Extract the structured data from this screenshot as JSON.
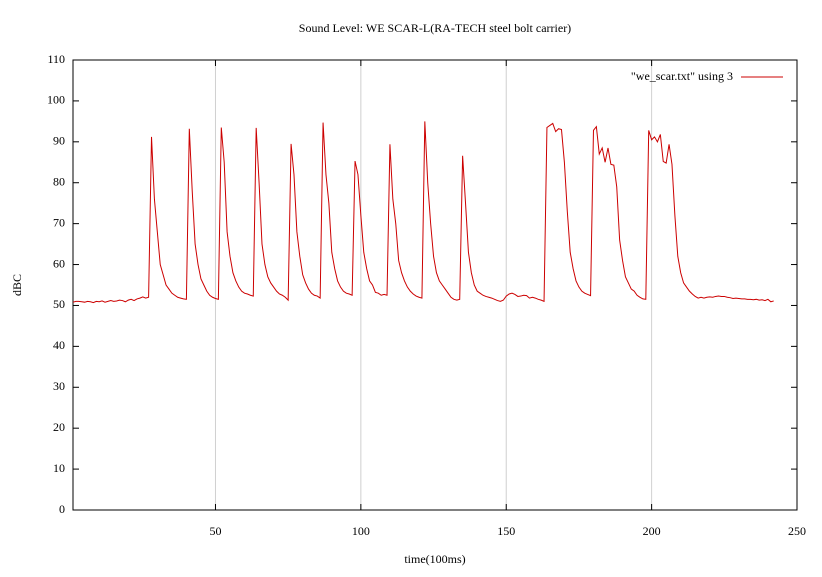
{
  "chart_data": {
    "type": "line",
    "title": "Sound Level: WE SCAR-L(RA-TECH steel bolt carrier)",
    "xlabel": "time(100ms)",
    "ylabel": "dBC",
    "x": [
      1,
      2,
      3,
      4,
      5,
      6,
      7,
      8,
      9,
      10,
      11,
      12,
      13,
      14,
      15,
      16,
      17,
      18,
      19,
      20,
      21,
      22,
      23,
      24,
      25,
      26,
      27,
      28,
      29,
      30,
      31,
      32,
      33,
      34,
      35,
      36,
      37,
      38,
      39,
      40,
      41,
      42,
      43,
      44,
      45,
      46,
      47,
      48,
      49,
      50,
      51,
      52,
      53,
      54,
      55,
      56,
      57,
      58,
      59,
      60,
      61,
      62,
      63,
      64,
      65,
      66,
      67,
      68,
      69,
      70,
      71,
      72,
      73,
      74,
      75,
      76,
      77,
      78,
      79,
      80,
      81,
      82,
      83,
      84,
      85,
      86,
      87,
      88,
      89,
      90,
      91,
      92,
      93,
      94,
      95,
      96,
      97,
      98,
      99,
      100,
      101,
      102,
      103,
      104,
      105,
      106,
      107,
      108,
      109,
      110,
      111,
      112,
      113,
      114,
      115,
      116,
      117,
      118,
      119,
      120,
      121,
      122,
      123,
      124,
      125,
      126,
      127,
      128,
      129,
      130,
      131,
      132,
      133,
      134,
      135,
      136,
      137,
      138,
      139,
      140,
      141,
      142,
      143,
      144,
      145,
      146,
      147,
      148,
      149,
      150,
      151,
      152,
      153,
      154,
      155,
      156,
      157,
      158,
      159,
      160,
      161,
      162,
      163,
      164,
      165,
      166,
      167,
      168,
      169,
      170,
      171,
      172,
      173,
      174,
      175,
      176,
      177,
      178,
      179,
      180,
      181,
      182,
      183,
      184,
      185,
      186,
      187,
      188,
      189,
      190,
      191,
      192,
      193,
      194,
      195,
      196,
      197,
      198,
      199,
      200,
      201,
      202,
      203,
      204,
      205,
      206,
      207,
      208,
      209,
      210,
      211,
      212,
      213,
      214,
      215,
      216,
      217,
      218,
      219,
      220,
      221,
      222,
      223,
      224,
      225,
      226,
      227,
      228,
      229,
      230,
      231,
      232,
      233,
      234,
      235,
      236,
      237,
      238,
      239,
      240,
      241,
      242
    ],
    "series": [
      {
        "name": "\"we_scar.txt\" using 3",
        "color": "#cc0000",
        "values": [
          50.8,
          51,
          51,
          50.9,
          50.8,
          51,
          50.9,
          50.7,
          51,
          50.9,
          51.1,
          50.8,
          51,
          51.2,
          51,
          51.1,
          51.3,
          51.2,
          50.9,
          51.3,
          51.5,
          51.2,
          51.6,
          51.8,
          52.1,
          51.8,
          52,
          91.2,
          76,
          68,
          60,
          57.5,
          55,
          54,
          53,
          52.5,
          52,
          51.8,
          51.6,
          51.5,
          93.2,
          78,
          65,
          60,
          56.5,
          55,
          53.5,
          52.5,
          52,
          51.7,
          51.5,
          93.5,
          85,
          68,
          62,
          58,
          56,
          54.5,
          53.5,
          53,
          52.8,
          52.5,
          52.3,
          93.4,
          80,
          65,
          60,
          57,
          55.5,
          54.5,
          53.5,
          52.8,
          52.5,
          52,
          51.3,
          89.5,
          82,
          68,
          62,
          57.5,
          55.5,
          54,
          53,
          52.5,
          52.3,
          51.8,
          94.7,
          82,
          75,
          63,
          59,
          56,
          54.5,
          53.5,
          53,
          52.8,
          52.5,
          85.3,
          82,
          72,
          63,
          59,
          56,
          55,
          53.2,
          53,
          52.5,
          52.7,
          52.5,
          89.4,
          76,
          70,
          61,
          58,
          56,
          54.5,
          53.5,
          52.8,
          52.3,
          52,
          51.8,
          95,
          80,
          70,
          62,
          58,
          56,
          55,
          54,
          53,
          52,
          51.5,
          51.3,
          51.5,
          86.6,
          75,
          63,
          58,
          55,
          53.5,
          53,
          52.5,
          52.2,
          52,
          51.8,
          51.5,
          51.2,
          51,
          51.3,
          52.3,
          52.8,
          53,
          52.7,
          52.2,
          52.3,
          52.5,
          52.4,
          51.8,
          52,
          51.8,
          51.5,
          51.3,
          51,
          93.5,
          94,
          94.5,
          92.5,
          93.2,
          93,
          85,
          73,
          63,
          59,
          56,
          54.5,
          53.5,
          53,
          52.7,
          52.4,
          92.8,
          93.7,
          87,
          88.5,
          85,
          88.5,
          84.5,
          84.3,
          79,
          66,
          61,
          57,
          55.5,
          54,
          53.5,
          52.5,
          52,
          51.6,
          51.5,
          92.8,
          90.5,
          91.2,
          90,
          91.8,
          85.2,
          84.8,
          89.4,
          84.5,
          72,
          62,
          58,
          55.5,
          54.5,
          53.5,
          52.8,
          52.2,
          51.8,
          52,
          51.8,
          52,
          52.1,
          52,
          52.2,
          52.3,
          52.2,
          52.2,
          52,
          51.9,
          51.7,
          51.8,
          51.7,
          51.6,
          51.6,
          51.5,
          51.5,
          51.4,
          51.5,
          51.3,
          51.4,
          51.2,
          51.5,
          50.9,
          51.1
        ]
      }
    ],
    "xlim": [
      1,
      250
    ],
    "xticks": [
      50,
      100,
      150,
      200,
      250
    ],
    "ylim": [
      0,
      110
    ],
    "yticks": [
      0,
      10,
      20,
      30,
      40,
      50,
      60,
      70,
      80,
      90,
      100,
      110
    ],
    "grid": "x",
    "legend": "upper right"
  }
}
